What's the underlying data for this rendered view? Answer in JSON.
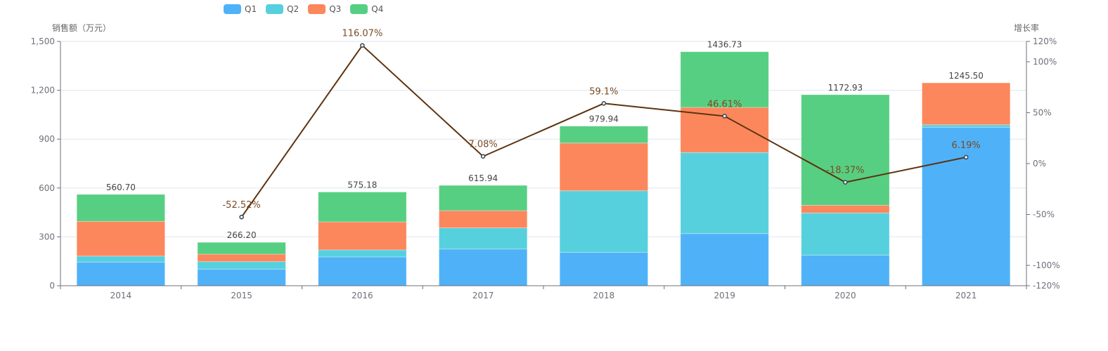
{
  "chart_data": {
    "type": "bar",
    "stacked": true,
    "categories": [
      "2014",
      "2015",
      "2016",
      "2017",
      "2018",
      "2019",
      "2020",
      "2021"
    ],
    "series": [
      {
        "name": "Q1",
        "color": "#4fb2f8",
        "values": [
          145,
          102,
          177,
          225,
          205,
          320,
          188,
          973
        ]
      },
      {
        "name": "Q2",
        "color": "#57d0de",
        "values": [
          37,
          46,
          43,
          130,
          378,
          498,
          259,
          15
        ]
      },
      {
        "name": "Q3",
        "color": "#fc875c",
        "values": [
          213,
          46,
          172,
          106,
          293,
          277,
          47,
          257.5
        ]
      },
      {
        "name": "Q4",
        "color": "#57cf82",
        "values": [
          165.7,
          72.2,
          183.18,
          154.94,
          103.94,
          341.73,
          678.93,
          0
        ]
      }
    ],
    "totals": [
      "560.70",
      "266.20",
      "575.18",
      "615.94",
      "979.94",
      "1436.73",
      "1172.93",
      "1245.50"
    ],
    "line_series": {
      "name": "增长率",
      "type": "line",
      "axis": "right",
      "color": "#5c3310",
      "values": [
        null,
        -52.52,
        116.07,
        7.08,
        59.1,
        46.61,
        -18.37,
        6.19
      ],
      "labels": [
        null,
        "-52.52%",
        "116.07%",
        "7.08%",
        "59.1%",
        "46.61%",
        "-18.37%",
        "6.19%"
      ]
    },
    "ylabel": "销售额（万元）",
    "ylabel_right": "增长率",
    "ylim": [
      0,
      1500
    ],
    "yticks": [
      0,
      300,
      600,
      900,
      1200,
      1500
    ],
    "ytick_labels": [
      "0",
      "300",
      "600",
      "900",
      "1,200",
      "1,500"
    ],
    "ylim_right": [
      -120,
      120
    ],
    "yticks_right": [
      -120,
      -100,
      -50,
      0,
      50,
      100,
      120
    ],
    "ytick_labels_right": [
      "-120%",
      "-100%",
      "-50%",
      "0%",
      "50%",
      "100%",
      "120%"
    ],
    "grid": true,
    "legend_position": "top-left"
  }
}
